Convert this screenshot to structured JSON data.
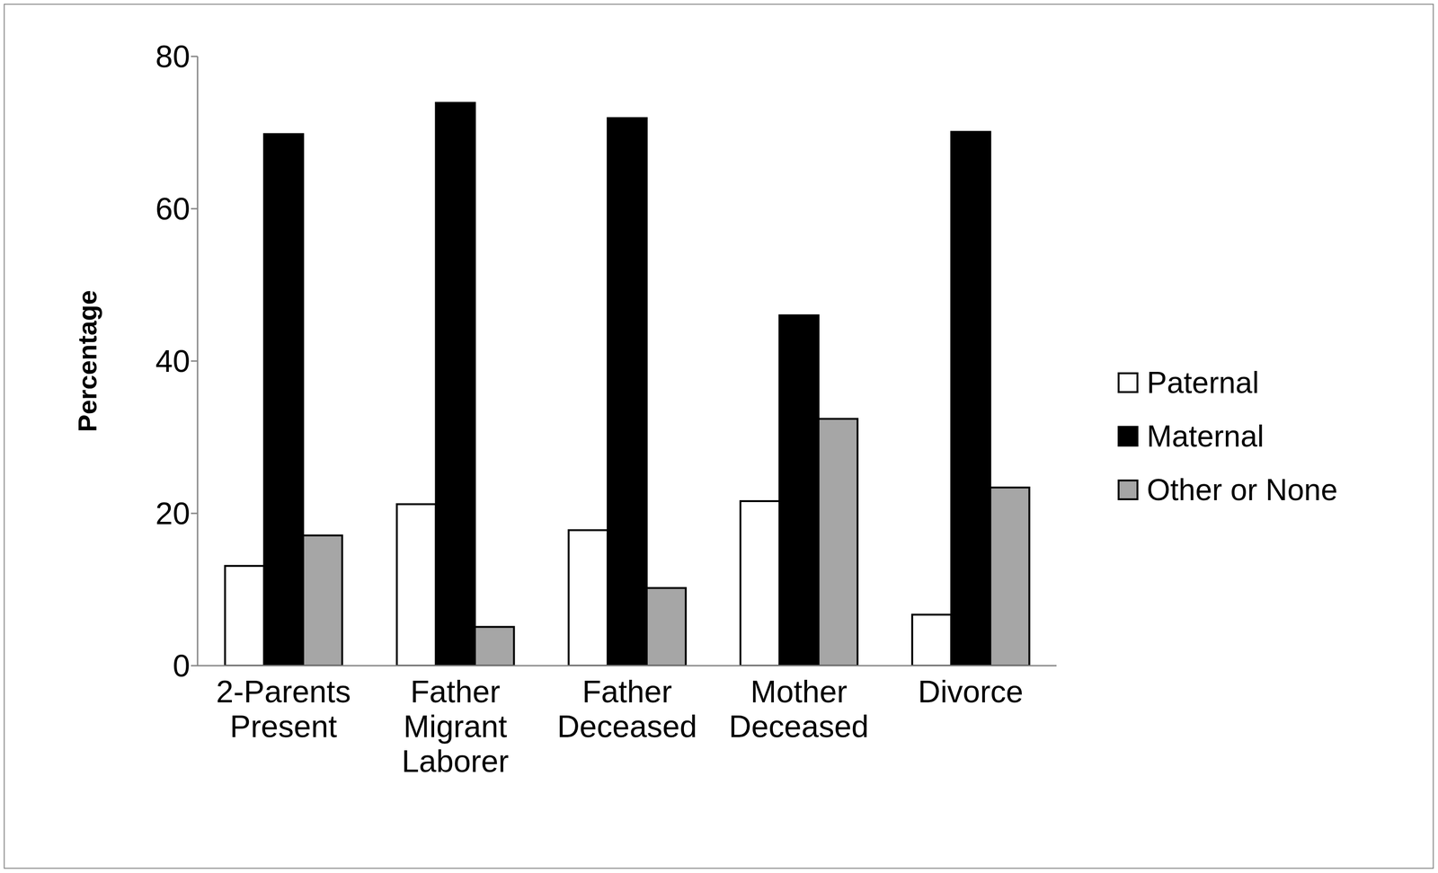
{
  "chart_data": {
    "type": "bar",
    "y_label": "Percentage",
    "categories": [
      "2-Parents Present",
      "Father Migrant Laborer",
      "Father Deceased",
      "Mother Deceased",
      "Divorce"
    ],
    "series": [
      {
        "name": "Paternal",
        "color": "#ffffff",
        "values": [
          13.1,
          21.2,
          17.8,
          21.6,
          6.7
        ]
      },
      {
        "name": "Maternal",
        "color": "#000000",
        "values": [
          69.8,
          73.9,
          71.9,
          46.0,
          70.1
        ]
      },
      {
        "name": "Other or None",
        "color": "#a6a6a6",
        "values": [
          17.1,
          5.1,
          10.2,
          32.4,
          23.4
        ]
      }
    ],
    "ylim": [
      0,
      80
    ],
    "yticks": [
      0,
      20,
      40,
      60,
      80
    ],
    "grid": false,
    "legend": "right"
  }
}
